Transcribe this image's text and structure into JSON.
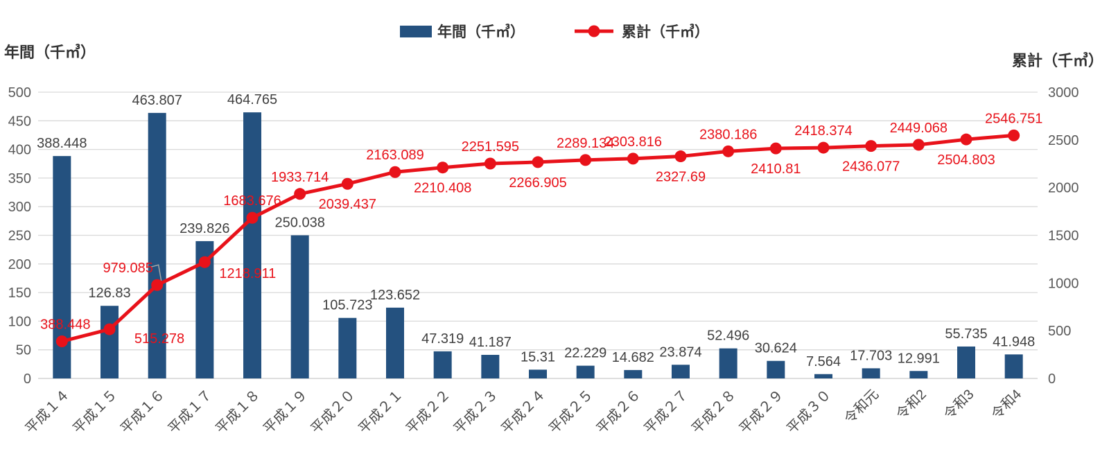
{
  "colors": {
    "bar": "#24517F",
    "line": "#E8121A",
    "grid": "#D9D9D9",
    "axis_line": "#C9C9C9",
    "tick_text": "#595959",
    "bar_label": "#404040",
    "x_label": "#4A4A4A",
    "leader": "#A6A6A6",
    "background": "#FFFFFF"
  },
  "chart_data": {
    "type": "bar",
    "subtype": "combo-bar-line-pareto",
    "title": "",
    "grid": true,
    "legend_position": "top",
    "categories": [
      "平成１４",
      "平成１５",
      "平成１６",
      "平成１７",
      "平成１８",
      "平成１９",
      "平成２０",
      "平成２１",
      "平成２２",
      "平成２３",
      "平成２４",
      "平成２５",
      "平成２６",
      "平成２７",
      "平成２８",
      "平成２９",
      "平成３０",
      "令和元",
      "令和2",
      "令和3",
      "令和4"
    ],
    "series": [
      {
        "name": "年間（千㎥）",
        "chart_type": "bar",
        "axis": "left",
        "color": "#24517F",
        "values": [
          388.448,
          126.83,
          463.807,
          239.826,
          464.765,
          250.038,
          105.723,
          123.652,
          47.319,
          41.187,
          15.31,
          22.229,
          14.682,
          23.874,
          52.496,
          30.624,
          7.564,
          17.703,
          12.991,
          55.735,
          41.948
        ],
        "labels": [
          "388.448",
          "126.83",
          "463.807",
          "239.826",
          "464.765",
          "250.038",
          "105.723",
          "123.652",
          "47.319",
          "41.187",
          "15.31",
          "22.229",
          "14.682",
          "23.874",
          "52.496",
          "30.624",
          "7.564",
          "17.703",
          "12.991",
          "55.735",
          "41.948"
        ]
      },
      {
        "name": "累計（千㎥）",
        "chart_type": "line",
        "axis": "right",
        "color": "#E8121A",
        "values": [
          388.448,
          515.278,
          979.085,
          1218.911,
          1683.676,
          1933.714,
          2039.437,
          2163.089,
          2210.408,
          2251.595,
          2266.905,
          2289.134,
          2303.816,
          2327.69,
          2380.186,
          2410.81,
          2418.374,
          2436.077,
          2449.068,
          2504.803,
          2546.751
        ],
        "labels": [
          "388.448",
          "515.278",
          "979.085",
          "1218.911",
          "1683.676",
          "1933.714",
          "2039.437",
          "2163.089",
          "2210.408",
          "2251.595",
          "2266.905",
          "2289.134",
          "2303.816",
          "2327.69",
          "2380.186",
          "2410.81",
          "2418.374",
          "2436.077",
          "2449.068",
          "2504.803",
          "2546.751"
        ],
        "label_side": [
          "above",
          "below",
          "above",
          "below",
          "above",
          "above",
          "below",
          "above",
          "below",
          "above",
          "below",
          "above",
          "above",
          "below",
          "above",
          "below",
          "above",
          "below",
          "above",
          "below",
          "above"
        ]
      }
    ],
    "left_axis": {
      "title": "年間（千㎥）",
      "min": 0,
      "max": 500,
      "step": 50,
      "tick_labels": [
        "0",
        "50",
        "100",
        "150",
        "200",
        "250",
        "300",
        "350",
        "400",
        "450",
        "500"
      ]
    },
    "right_axis": {
      "title": "累計（千㎥）",
      "min": 0,
      "max": 3000,
      "step": 500,
      "tick_labels": [
        "0",
        "500",
        "1000",
        "1500",
        "2000",
        "2500",
        "3000"
      ]
    }
  }
}
